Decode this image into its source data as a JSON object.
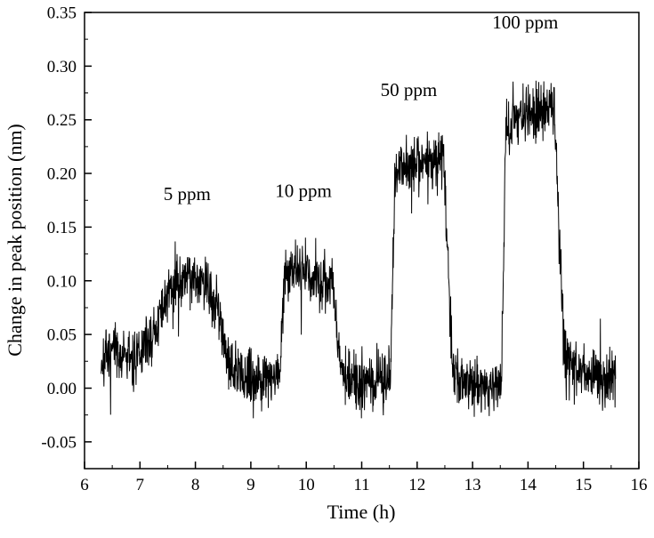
{
  "chart_data": {
    "type": "line",
    "title": "",
    "xlabel": "Time (h)",
    "ylabel": "Change in peak position (nm)",
    "xlim": [
      6,
      16
    ],
    "ylim": [
      -0.075,
      0.35
    ],
    "xticks": [
      6,
      7,
      8,
      9,
      10,
      11,
      12,
      13,
      14,
      15,
      16
    ],
    "yticks": [
      -0.05,
      0.0,
      0.05,
      0.1,
      0.15,
      0.2,
      0.25,
      0.3,
      0.35
    ],
    "x_minor_step": 0.5,
    "y_minor_step": 0.025,
    "grid": false,
    "legend": "none",
    "frame_color": "#000000",
    "line_color": "#000000",
    "annotations": [
      {
        "text": "5 ppm",
        "x": 7.85,
        "y": 0.175
      },
      {
        "text": "10 ppm",
        "x": 9.95,
        "y": 0.178
      },
      {
        "text": "50 ppm",
        "x": 11.85,
        "y": 0.272
      },
      {
        "text": "100 ppm",
        "x": 13.95,
        "y": 0.335
      }
    ],
    "series": [
      {
        "name": "sensor response",
        "t_start": 6.3,
        "t_end": 15.58,
        "t_step": 0.005,
        "noise_sd": 0.013,
        "profile": [
          [
            6.3,
            0.025
          ],
          [
            6.6,
            0.035
          ],
          [
            6.9,
            0.025
          ],
          [
            7.2,
            0.045
          ],
          [
            7.5,
            0.085
          ],
          [
            7.8,
            0.107
          ],
          [
            8.0,
            0.103
          ],
          [
            8.2,
            0.096
          ],
          [
            8.4,
            0.075
          ],
          [
            8.55,
            0.035
          ],
          [
            8.7,
            0.015
          ],
          [
            9.0,
            0.008
          ],
          [
            9.4,
            0.012
          ],
          [
            9.52,
            0.012
          ],
          [
            9.6,
            0.103
          ],
          [
            9.85,
            0.112
          ],
          [
            10.2,
            0.1
          ],
          [
            10.48,
            0.097
          ],
          [
            10.56,
            0.045
          ],
          [
            10.65,
            0.012
          ],
          [
            11.0,
            0.005
          ],
          [
            11.45,
            0.01
          ],
          [
            11.52,
            0.01
          ],
          [
            11.6,
            0.2
          ],
          [
            11.85,
            0.208
          ],
          [
            12.2,
            0.212
          ],
          [
            12.48,
            0.213
          ],
          [
            12.56,
            0.11
          ],
          [
            12.65,
            0.012
          ],
          [
            13.0,
            0.0
          ],
          [
            13.45,
            0.006
          ],
          [
            13.52,
            0.006
          ],
          [
            13.6,
            0.24
          ],
          [
            13.85,
            0.256
          ],
          [
            14.15,
            0.258
          ],
          [
            14.48,
            0.262
          ],
          [
            14.56,
            0.14
          ],
          [
            14.66,
            0.025
          ],
          [
            15.0,
            0.012
          ],
          [
            15.58,
            0.01
          ]
        ]
      }
    ]
  }
}
